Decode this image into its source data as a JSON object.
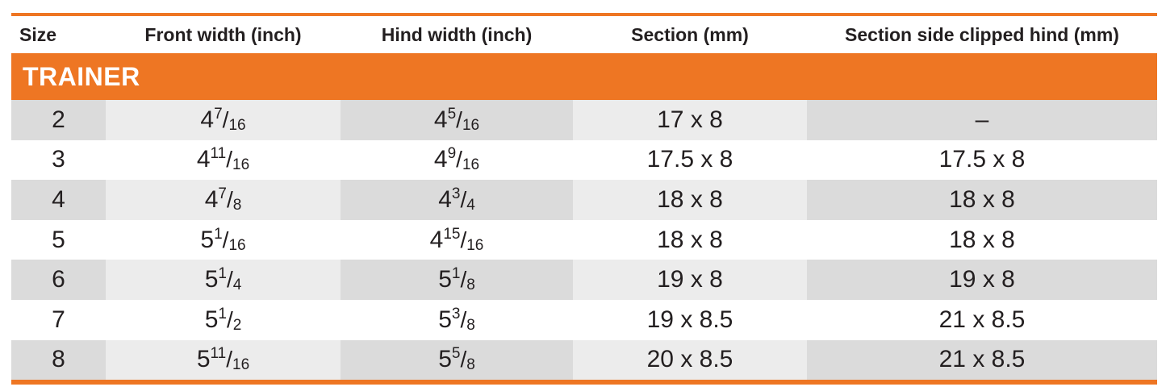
{
  "headers": [
    "Size",
    "Front width (inch)",
    "Hind width (inch)",
    "Section (mm)",
    "Section side clipped hind (mm)"
  ],
  "section_title": "TRAINER",
  "rows": [
    {
      "size": "2",
      "front": {
        "whole": "4",
        "num": "7",
        "den": "16"
      },
      "hind": {
        "whole": "4",
        "num": "5",
        "den": "16"
      },
      "section": "17 x 8",
      "clipped": "–"
    },
    {
      "size": "3",
      "front": {
        "whole": "4",
        "num": "11",
        "den": "16"
      },
      "hind": {
        "whole": "4",
        "num": "9",
        "den": "16"
      },
      "section": "17.5 x 8",
      "clipped": "17.5 x 8"
    },
    {
      "size": "4",
      "front": {
        "whole": "4",
        "num": "7",
        "den": "8"
      },
      "hind": {
        "whole": "4",
        "num": "3",
        "den": "4"
      },
      "section": "18 x 8",
      "clipped": "18 x 8"
    },
    {
      "size": "5",
      "front": {
        "whole": "5",
        "num": "1",
        "den": "16"
      },
      "hind": {
        "whole": "4",
        "num": "15",
        "den": "16"
      },
      "section": "18 x 8",
      "clipped": "18 x 8"
    },
    {
      "size": "6",
      "front": {
        "whole": "5",
        "num": "1",
        "den": "4"
      },
      "hind": {
        "whole": "5",
        "num": "1",
        "den": "8"
      },
      "section": "19 x 8",
      "clipped": "19 x 8"
    },
    {
      "size": "7",
      "front": {
        "whole": "5",
        "num": "1",
        "den": "2"
      },
      "hind": {
        "whole": "5",
        "num": "3",
        "den": "8"
      },
      "section": "19 x 8.5",
      "clipped": "21 x 8.5"
    },
    {
      "size": "8",
      "front": {
        "whole": "5",
        "num": "11",
        "den": "16"
      },
      "hind": {
        "whole": "5",
        "num": "5",
        "den": "8"
      },
      "section": "20 x 8.5",
      "clipped": "21 x 8.5"
    }
  ],
  "colors": {
    "accent": "#ee7623",
    "row_light": "#ececec",
    "row_dark": "#dbdbdb"
  }
}
